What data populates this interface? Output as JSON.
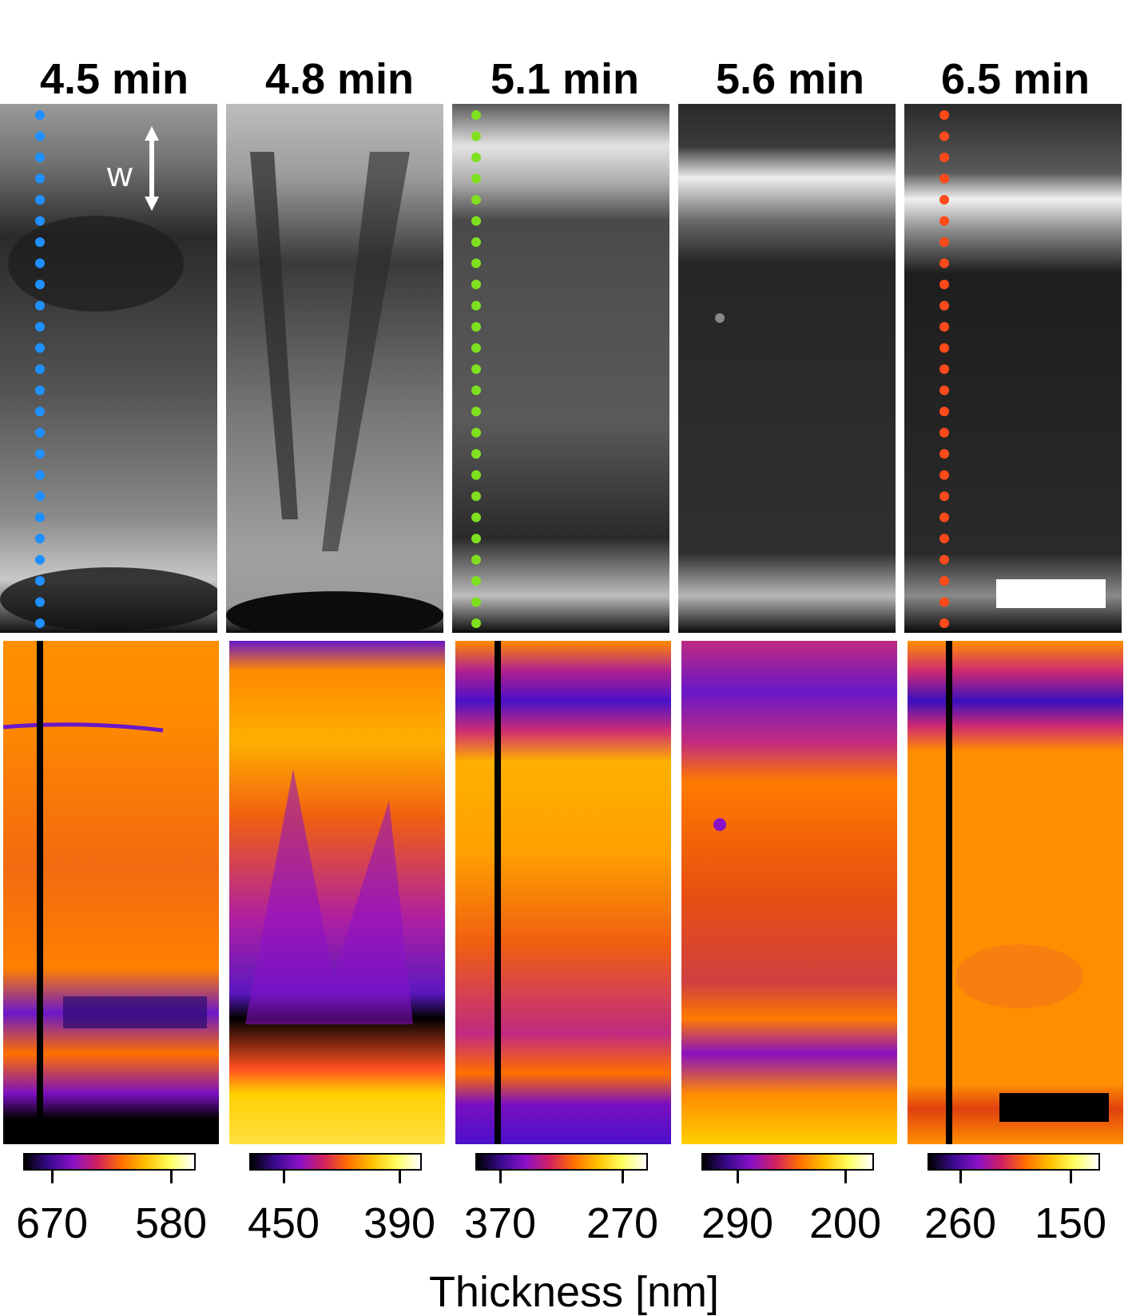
{
  "panels": [
    {
      "time": "4.5 min",
      "marker_color": "#1e90ff",
      "tick_left": "670",
      "tick_right": "580"
    },
    {
      "time": "4.8 min",
      "marker_color": null,
      "tick_left": "450",
      "tick_right": "390"
    },
    {
      "time": "5.1 min",
      "marker_color": "#7fe020",
      "tick_left": "370",
      "tick_right": "270"
    },
    {
      "time": "5.6 min",
      "marker_color": null,
      "tick_left": "290",
      "tick_right": "200"
    },
    {
      "time": "6.5 min",
      "marker_color": "#ff4a1a",
      "tick_left": "260",
      "tick_right": "150"
    }
  ],
  "width_arrow_label": "w",
  "axis_title": "Thickness [nm]",
  "colormap": [
    "#000000",
    "#3a0a8f",
    "#8a10c8",
    "#d02060",
    "#ff7000",
    "#ffc000",
    "#ffff60",
    "#ffffff"
  ]
}
